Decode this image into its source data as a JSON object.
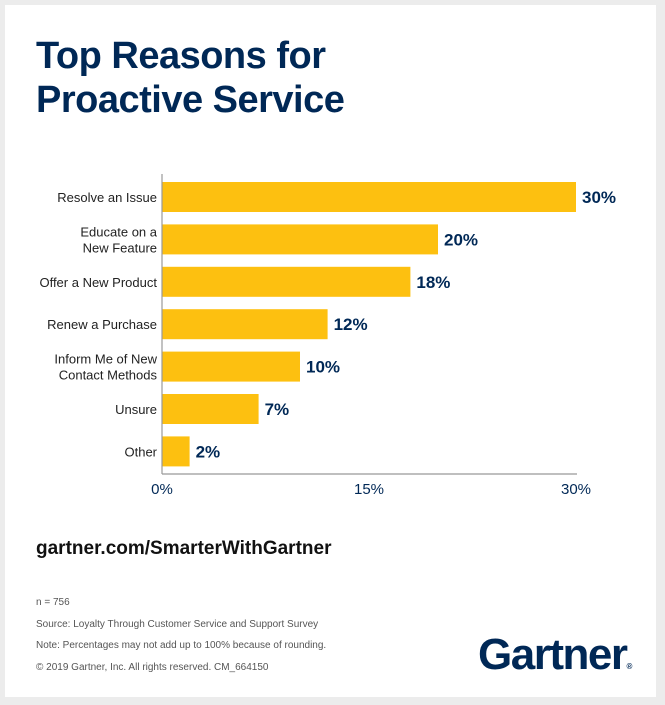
{
  "title_line1": "Top Reasons for",
  "title_line2": "Proactive Service",
  "chart_data": {
    "type": "bar",
    "orientation": "horizontal",
    "categories": [
      [
        "Resolve an Issue"
      ],
      [
        "Educate on a",
        "New Feature"
      ],
      [
        "Offer a New Product"
      ],
      [
        "Renew a Purchase"
      ],
      [
        "Inform Me of New",
        "Contact Methods"
      ],
      [
        "Unsure"
      ],
      [
        "Other"
      ]
    ],
    "values": [
      30,
      20,
      18,
      12,
      10,
      7,
      2
    ],
    "data_labels": [
      "30%",
      "20%",
      "18%",
      "12%",
      "10%",
      "7%",
      "2%"
    ],
    "xlim": [
      0,
      30
    ],
    "xticks": [
      "0%",
      "15%",
      "30%"
    ],
    "xtick_values": [
      0,
      15,
      30
    ],
    "grid": false,
    "bar_color": "#FDC010",
    "label_color": "#002856"
  },
  "footer": {
    "url": "gartner.com/SmarterWithGartner",
    "notes": [
      "n = 756",
      "Source: Loyalty Through Customer Service and Support Survey",
      "Note: Percentages may not add up to 100% because of rounding.",
      "© 2019 Gartner, Inc. All rights reserved. CM_664150"
    ],
    "logo": "Gartner",
    "logo_mark": "®"
  }
}
